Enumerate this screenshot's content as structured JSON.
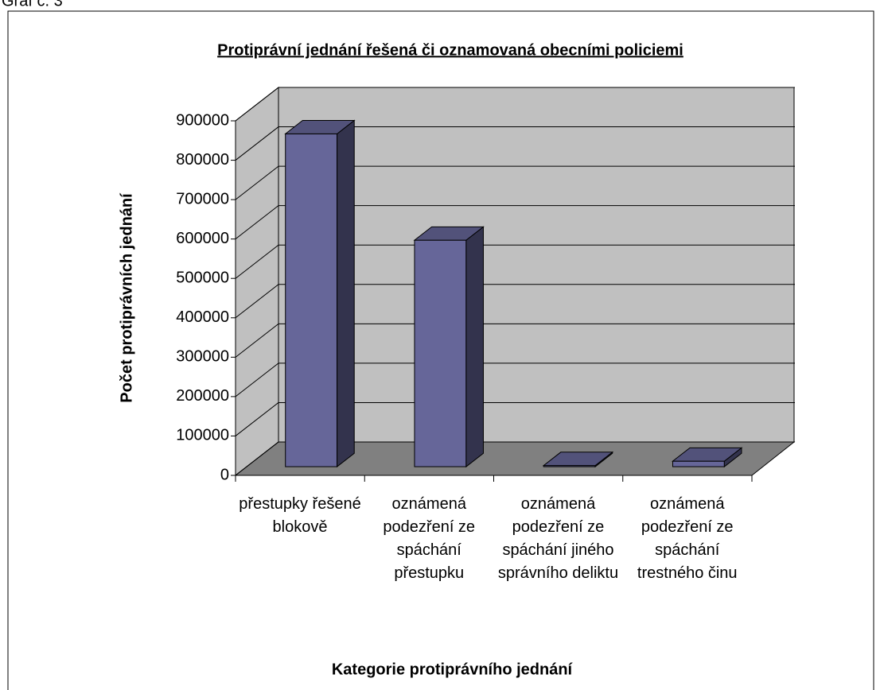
{
  "caption": "Graf č. 3",
  "chart_data": {
    "type": "bar",
    "title": "Protiprávní jednání řešená či oznamovaná obecními policiemi",
    "x_label": "Kategorie protiprávního jednání",
    "y_label": "Počet protiprávních jednání",
    "categories": [
      "přestupky řešené blokově",
      "oznámená podezření ze spáchání přestupku",
      "oznámená podezření ze spáchání jiného správního deliktu",
      "oznámená podezření ze spáchání trestného činu"
    ],
    "values": [
      845000,
      575000,
      3000,
      14000
    ],
    "color": "#666699",
    "ylim": [
      0,
      900000
    ],
    "yticks": [
      0,
      100000,
      200000,
      300000,
      400000,
      500000,
      600000,
      700000,
      800000,
      900000
    ],
    "grid": true
  }
}
